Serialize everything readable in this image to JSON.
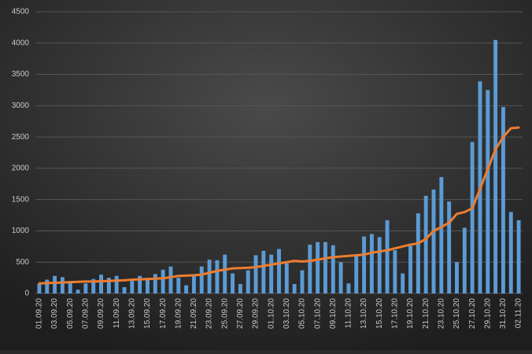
{
  "chart_data": {
    "type": "combo",
    "categories": [
      "01.09.20",
      null,
      "03.09.20",
      null,
      "05.09.20",
      null,
      "07.09.20",
      null,
      "09.09.20",
      null,
      "11.09.20",
      null,
      "13.09.20",
      null,
      "15.09.20",
      null,
      "17.09.20",
      null,
      "19.09.20",
      null,
      "21.09.20",
      null,
      "23.09.20",
      null,
      "25.09.20",
      null,
      "27.09.20",
      null,
      "29.09.20",
      null,
      "01.10.20",
      null,
      "03.10.20",
      null,
      "05.10.20",
      null,
      "07.10.20",
      null,
      "09.10.20",
      null,
      "11.10.20",
      null,
      "13.10.20",
      null,
      "15.10.20",
      null,
      "17.10.20",
      null,
      "19.10.20",
      null,
      "21.10.20",
      null,
      "23.10.20",
      null,
      "25.10.20",
      null,
      "27.10.20",
      null,
      "29.10.20",
      null,
      "31.10.20",
      null,
      "02.11.20"
    ],
    "series": [
      {
        "type": "bar",
        "color": "#5b9bd5",
        "values": [
          150,
          220,
          280,
          260,
          170,
          60,
          160,
          230,
          300,
          250,
          280,
          100,
          200,
          280,
          250,
          310,
          380,
          430,
          250,
          130,
          280,
          430,
          540,
          530,
          620,
          320,
          150,
          370,
          610,
          680,
          620,
          710,
          480,
          150,
          370,
          780,
          820,
          820,
          770,
          500,
          160,
          620,
          910,
          950,
          900,
          1170,
          690,
          320,
          760,
          1280,
          1560,
          1660,
          1860,
          1470,
          500,
          1050,
          2420,
          3390,
          3250,
          4050,
          2980,
          1300,
          1170
        ]
      },
      {
        "type": "line",
        "color": "#ed7d31",
        "values": [
          160,
          165,
          170,
          175,
          180,
          185,
          190,
          190,
          195,
          200,
          205,
          210,
          220,
          225,
          230,
          235,
          240,
          260,
          280,
          285,
          290,
          300,
          330,
          360,
          380,
          400,
          405,
          410,
          420,
          440,
          460,
          480,
          500,
          520,
          510,
          520,
          540,
          560,
          580,
          590,
          600,
          610,
          620,
          650,
          670,
          690,
          720,
          750,
          780,
          800,
          870,
          1000,
          1060,
          1130,
          1270,
          1300,
          1360,
          1670,
          1985,
          2300,
          2500,
          2640,
          2650
        ]
      }
    ],
    "ylim": [
      0,
      4500
    ],
    "yticks": [
      0,
      500,
      1000,
      1500,
      2000,
      2500,
      3000,
      3500,
      4000,
      4500
    ],
    "grid": true
  }
}
